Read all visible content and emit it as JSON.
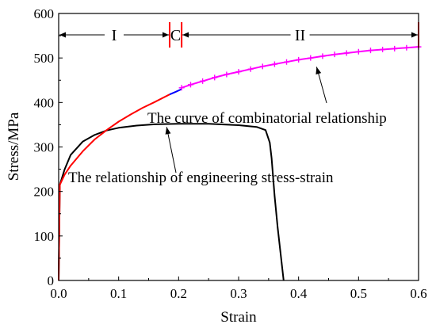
{
  "chart_data": {
    "type": "line",
    "xlabel": "Strain",
    "ylabel": "Stress/MPa",
    "xlim": [
      0.0,
      0.6
    ],
    "ylim": [
      0,
      600
    ],
    "x_ticks": [
      "0.0",
      "0.1",
      "0.2",
      "0.3",
      "0.4",
      "0.5",
      "0.6"
    ],
    "y_ticks": [
      "0",
      "100",
      "200",
      "300",
      "400",
      "500",
      "600"
    ],
    "x_tick_values": [
      0.0,
      0.1,
      0.2,
      0.3,
      0.4,
      0.5,
      0.6
    ],
    "y_tick_values": [
      0,
      100,
      200,
      300,
      400,
      500,
      600
    ],
    "grid": false,
    "regions": [
      {
        "label": "I",
        "x_start": 0.0,
        "x_end": 0.185
      },
      {
        "label": "C",
        "x_start": 0.185,
        "x_end": 0.205
      },
      {
        "label": "II",
        "x_start": 0.205,
        "x_end": 0.6
      }
    ],
    "region_boundaries": [
      0.185,
      0.205,
      0.6
    ],
    "annotations": [
      {
        "text": "The curve of combinatorial relationship",
        "points_to": {
          "x": 0.43,
          "y": 480
        }
      },
      {
        "text": "The relationship of engineering stress-strain",
        "points_to": {
          "x": 0.18,
          "y": 345
        }
      }
    ],
    "series": [
      {
        "color": "#000000",
        "marker": "none",
        "points": [
          [
            0.0,
            0
          ],
          [
            0.002,
            215
          ],
          [
            0.01,
            250
          ],
          [
            0.02,
            282
          ],
          [
            0.04,
            312
          ],
          [
            0.06,
            327
          ],
          [
            0.08,
            337
          ],
          [
            0.1,
            343
          ],
          [
            0.13,
            348
          ],
          [
            0.16,
            351
          ],
          [
            0.2,
            352
          ],
          [
            0.25,
            352
          ],
          [
            0.3,
            349
          ],
          [
            0.33,
            345
          ],
          [
            0.345,
            338
          ],
          [
            0.352,
            310
          ],
          [
            0.355,
            275
          ],
          [
            0.36,
            190
          ],
          [
            0.365,
            120
          ],
          [
            0.37,
            60
          ],
          [
            0.375,
            0
          ]
        ]
      },
      {
        "color": "#ff0000",
        "marker": "none",
        "points": [
          [
            0.0,
            0
          ],
          [
            0.002,
            215
          ],
          [
            0.01,
            238
          ],
          [
            0.02,
            258
          ],
          [
            0.04,
            290
          ],
          [
            0.06,
            317
          ],
          [
            0.08,
            338
          ],
          [
            0.1,
            357
          ],
          [
            0.12,
            373
          ],
          [
            0.14,
            388
          ],
          [
            0.16,
            401
          ],
          [
            0.185,
            418
          ]
        ]
      },
      {
        "color": "#0000ff",
        "marker": "none",
        "points": [
          [
            0.185,
            418
          ],
          [
            0.195,
            424
          ],
          [
            0.205,
            430
          ]
        ]
      },
      {
        "color": "#ff00ff",
        "marker": "plus",
        "points": [
          [
            0.205,
            433
          ],
          [
            0.22,
            440
          ],
          [
            0.24,
            448
          ],
          [
            0.26,
            456
          ],
          [
            0.28,
            463
          ],
          [
            0.3,
            469
          ],
          [
            0.32,
            475
          ],
          [
            0.34,
            481
          ],
          [
            0.36,
            486
          ],
          [
            0.38,
            491
          ],
          [
            0.4,
            496
          ],
          [
            0.42,
            500
          ],
          [
            0.44,
            504
          ],
          [
            0.46,
            508
          ],
          [
            0.48,
            511
          ],
          [
            0.5,
            514
          ],
          [
            0.52,
            517
          ],
          [
            0.54,
            519
          ],
          [
            0.56,
            521
          ],
          [
            0.58,
            523
          ],
          [
            0.6,
            525
          ]
        ]
      }
    ]
  }
}
